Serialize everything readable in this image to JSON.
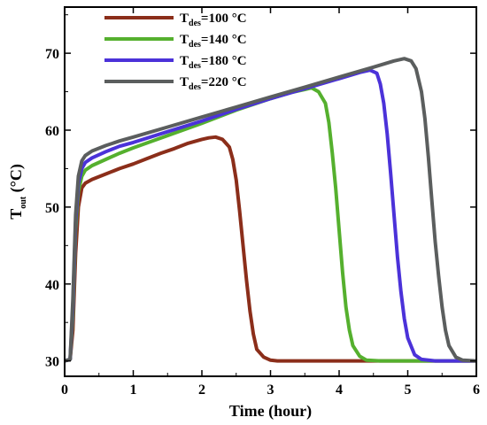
{
  "chart_data": {
    "type": "line",
    "xlabel": "Time (hour)",
    "ylabel_main": "T",
    "ylabel_sub": "out",
    "ylabel_unit": " (°C)",
    "xlim": [
      0,
      6
    ],
    "ylim": [
      28,
      76
    ],
    "xticks": [
      0,
      1,
      2,
      3,
      4,
      5,
      6
    ],
    "yticks": [
      30,
      40,
      50,
      60,
      70
    ],
    "grid": false,
    "legend_position": "top-left",
    "series": [
      {
        "name": "T_des=100 °C",
        "legend_main": "T",
        "legend_sub": "des",
        "legend_rest": "=100 °C",
        "color": "#8B2E1A",
        "x": [
          0.0,
          0.08,
          0.12,
          0.16,
          0.2,
          0.25,
          0.3,
          0.4,
          0.6,
          0.8,
          1.0,
          1.2,
          1.4,
          1.6,
          1.8,
          2.0,
          2.1,
          2.2,
          2.3,
          2.4,
          2.45,
          2.5,
          2.55,
          2.6,
          2.65,
          2.7,
          2.75,
          2.8,
          2.9,
          3.0,
          3.1,
          3.3,
          4.0,
          5.0,
          6.0
        ],
        "y": [
          30,
          30.2,
          34,
          44,
          50,
          52.5,
          53.1,
          53.6,
          54.3,
          55.0,
          55.6,
          56.3,
          57.0,
          57.6,
          58.3,
          58.8,
          59.0,
          59.1,
          58.8,
          57.8,
          56.2,
          53.5,
          49.5,
          45,
          40.5,
          36.5,
          33.5,
          31.5,
          30.5,
          30.1,
          30.0,
          30.0,
          30.0,
          30.0,
          30.0
        ]
      },
      {
        "name": "T_des=140 °C",
        "legend_main": "T",
        "legend_sub": "des",
        "legend_rest": "=140 °C",
        "color": "#55B02E",
        "x": [
          0.0,
          0.08,
          0.12,
          0.16,
          0.2,
          0.25,
          0.3,
          0.4,
          0.6,
          0.8,
          1.0,
          1.5,
          2.0,
          2.5,
          3.0,
          3.3,
          3.5,
          3.6,
          3.7,
          3.8,
          3.85,
          3.9,
          3.95,
          4.0,
          4.05,
          4.1,
          4.15,
          4.2,
          4.3,
          4.4,
          4.6,
          5.0,
          6.0
        ],
        "y": [
          30,
          30.2,
          36,
          47,
          52,
          54.0,
          54.8,
          55.4,
          56.2,
          57.0,
          57.7,
          59.3,
          60.9,
          62.6,
          64.1,
          64.9,
          65.3,
          65.5,
          65.0,
          63.5,
          61.0,
          57.0,
          52.5,
          47.0,
          41.5,
          37.0,
          34.0,
          32.0,
          30.6,
          30.1,
          30.0,
          30.0,
          30.0
        ]
      },
      {
        "name": "T_des=180 °C",
        "legend_main": "T",
        "legend_sub": "des",
        "legend_rest": "=180 °C",
        "color": "#4B32D9",
        "x": [
          0.0,
          0.08,
          0.12,
          0.16,
          0.2,
          0.25,
          0.3,
          0.4,
          0.6,
          0.8,
          1.0,
          1.5,
          2.0,
          2.5,
          3.0,
          3.5,
          4.0,
          4.3,
          4.45,
          4.55,
          4.6,
          4.65,
          4.7,
          4.75,
          4.8,
          4.85,
          4.9,
          4.95,
          5.0,
          5.1,
          5.2,
          5.4,
          6.0
        ],
        "y": [
          30,
          30.2,
          37,
          48,
          53,
          55.0,
          55.8,
          56.4,
          57.2,
          57.9,
          58.4,
          59.8,
          61.2,
          62.7,
          64.1,
          65.4,
          66.7,
          67.5,
          67.8,
          67.4,
          66.0,
          63.5,
          59.5,
          54.5,
          49.0,
          43.5,
          39.0,
          35.5,
          33.0,
          30.8,
          30.2,
          30.0,
          30.0
        ]
      },
      {
        "name": "T_des=220 °C",
        "legend_main": "T",
        "legend_sub": "des",
        "legend_rest": "=220 °C",
        "color": "#5B5E5E",
        "x": [
          0.0,
          0.08,
          0.12,
          0.16,
          0.2,
          0.25,
          0.3,
          0.4,
          0.6,
          0.8,
          1.0,
          1.5,
          2.0,
          2.5,
          3.0,
          3.5,
          4.0,
          4.5,
          4.8,
          4.95,
          5.05,
          5.12,
          5.2,
          5.25,
          5.3,
          5.35,
          5.4,
          5.45,
          5.5,
          5.55,
          5.6,
          5.7,
          5.8,
          6.0
        ],
        "y": [
          30,
          30.2,
          38,
          49,
          54,
          56.0,
          56.7,
          57.3,
          58.0,
          58.6,
          59.1,
          60.4,
          61.7,
          63.0,
          64.3,
          65.6,
          66.9,
          68.2,
          69.0,
          69.3,
          69.0,
          68.0,
          65.0,
          61.5,
          56.5,
          51.0,
          45.5,
          41.0,
          37.0,
          34.0,
          32.0,
          30.5,
          30.1,
          30.0
        ]
      }
    ]
  }
}
